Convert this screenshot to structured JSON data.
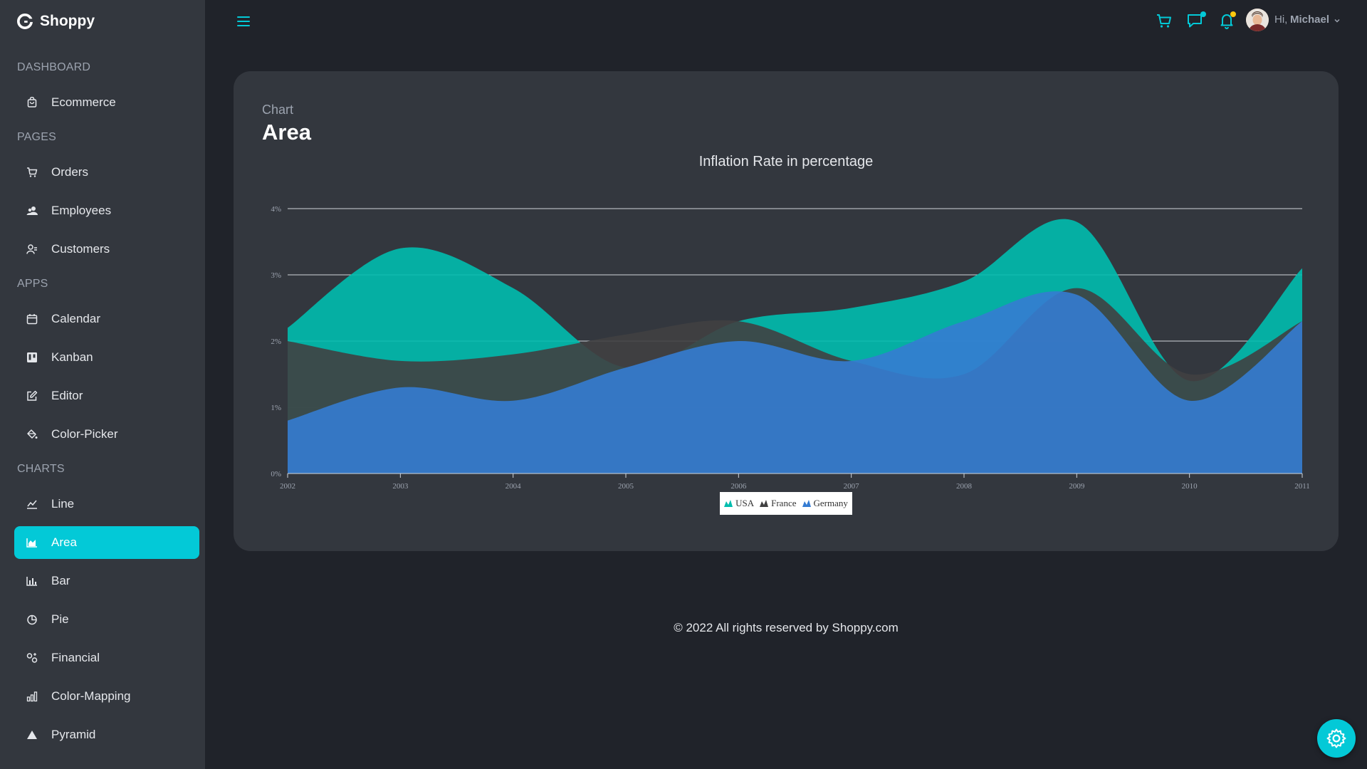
{
  "app": {
    "name": "Shoppy"
  },
  "sidebar": {
    "sections": [
      {
        "title": "Dashboard",
        "items": [
          {
            "label": "Ecommerce",
            "icon": "shopping-bag-icon"
          }
        ]
      },
      {
        "title": "Pages",
        "items": [
          {
            "label": "Orders",
            "icon": "cart-icon"
          },
          {
            "label": "Employees",
            "icon": "employees-icon"
          },
          {
            "label": "Customers",
            "icon": "customers-icon"
          }
        ]
      },
      {
        "title": "Apps",
        "items": [
          {
            "label": "Calendar",
            "icon": "calendar-icon"
          },
          {
            "label": "Kanban",
            "icon": "kanban-icon"
          },
          {
            "label": "Editor",
            "icon": "edit-icon"
          },
          {
            "label": "Color-Picker",
            "icon": "paint-bucket-icon"
          }
        ]
      },
      {
        "title": "Charts",
        "items": [
          {
            "label": "Line",
            "icon": "line-chart-icon"
          },
          {
            "label": "Area",
            "icon": "area-chart-icon",
            "active": true
          },
          {
            "label": "Bar",
            "icon": "bar-chart-icon"
          },
          {
            "label": "Pie",
            "icon": "pie-chart-icon"
          },
          {
            "label": "Financial",
            "icon": "financial-icon"
          },
          {
            "label": "Color-Mapping",
            "icon": "color-mapping-icon"
          },
          {
            "label": "Pyramid",
            "icon": "pyramid-icon"
          }
        ]
      }
    ]
  },
  "topbar": {
    "greeting": "Hi,",
    "user_name": "Michael",
    "icons": [
      "menu-icon",
      "cart-icon",
      "chat-icon",
      "bell-icon",
      "avatar",
      "chevron-down-icon"
    ]
  },
  "card": {
    "subtitle": "Chart",
    "title": "Area"
  },
  "chart_data": {
    "type": "area",
    "title": "Inflation Rate in percentage",
    "x": [
      "2002",
      "2003",
      "2004",
      "2005",
      "2006",
      "2007",
      "2008",
      "2009",
      "2010",
      "2011"
    ],
    "x_ticks": [
      "2002",
      "2003",
      "2004",
      "2005",
      "2006",
      "2007",
      "2008",
      "2009",
      "2010",
      "2011"
    ],
    "y_ticks": [
      "0%",
      "1%",
      "2%",
      "3%",
      "4%"
    ],
    "ylim": [
      0,
      4
    ],
    "grid": true,
    "legend_position": "bottom-center",
    "series": [
      {
        "name": "USA",
        "color": "#00bdae",
        "values": [
          2.2,
          3.4,
          2.8,
          1.6,
          2.3,
          2.5,
          2.9,
          3.8,
          1.4,
          3.1
        ]
      },
      {
        "name": "France",
        "color": "#404041",
        "values": [
          2.0,
          1.7,
          1.8,
          2.1,
          2.3,
          1.7,
          1.5,
          2.8,
          1.5,
          2.3
        ]
      },
      {
        "name": "Germany",
        "color": "#357cd2",
        "values": [
          0.8,
          1.3,
          1.1,
          1.6,
          2.0,
          1.7,
          2.3,
          2.7,
          1.1,
          2.3
        ]
      }
    ]
  },
  "footer": {
    "text": "© 2022 All rights reserved by Shoppy.com"
  },
  "colors": {
    "accent": "#03c9d7",
    "background": "#20232a",
    "panel": "#33373e"
  }
}
